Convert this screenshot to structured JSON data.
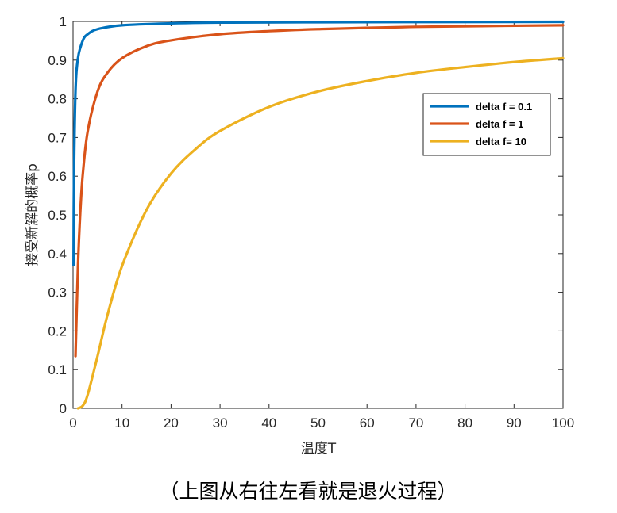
{
  "chart_data": {
    "type": "line",
    "title": "",
    "xlabel": "温度T",
    "ylabel": "接受新解的概率p",
    "xlim": [
      0,
      100
    ],
    "ylim": [
      0,
      1
    ],
    "x_ticks": [
      "0",
      "10",
      "20",
      "30",
      "40",
      "50",
      "60",
      "70",
      "80",
      "90",
      "100"
    ],
    "y_ticks": [
      "0",
      "0.1",
      "0.2",
      "0.3",
      "0.4",
      "0.5",
      "0.6",
      "0.7",
      "0.8",
      "0.9",
      "1"
    ],
    "grid": false,
    "legend_position": "right",
    "series": [
      {
        "name": "delta f = 0.1",
        "color": "#0072BD",
        "x": [
          0.1,
          0.2,
          0.5,
          1,
          2,
          3,
          5,
          10,
          20,
          30,
          50,
          100
        ],
        "y": [
          0.37,
          0.61,
          0.82,
          0.905,
          0.951,
          0.967,
          0.98,
          0.99,
          0.995,
          0.997,
          0.998,
          0.999
        ]
      },
      {
        "name": "delta f = 1",
        "color": "#D95319",
        "x": [
          0.5,
          1,
          1.5,
          2,
          3,
          5,
          7,
          10,
          15,
          20,
          30,
          40,
          50,
          70,
          100
        ],
        "y": [
          0.135,
          0.368,
          0.513,
          0.607,
          0.717,
          0.819,
          0.867,
          0.905,
          0.936,
          0.951,
          0.967,
          0.975,
          0.98,
          0.986,
          0.99
        ]
      },
      {
        "name": "delta f= 10",
        "color": "#EDB120",
        "x": [
          1,
          2,
          3,
          5,
          7,
          10,
          15,
          20,
          25,
          30,
          40,
          50,
          60,
          70,
          80,
          90,
          100
        ],
        "y": [
          0.0,
          0.007,
          0.036,
          0.135,
          0.24,
          0.368,
          0.513,
          0.607,
          0.67,
          0.717,
          0.779,
          0.819,
          0.846,
          0.867,
          0.882,
          0.895,
          0.905
        ]
      }
    ]
  },
  "caption": "（上图从右往左看就是退火过程）"
}
